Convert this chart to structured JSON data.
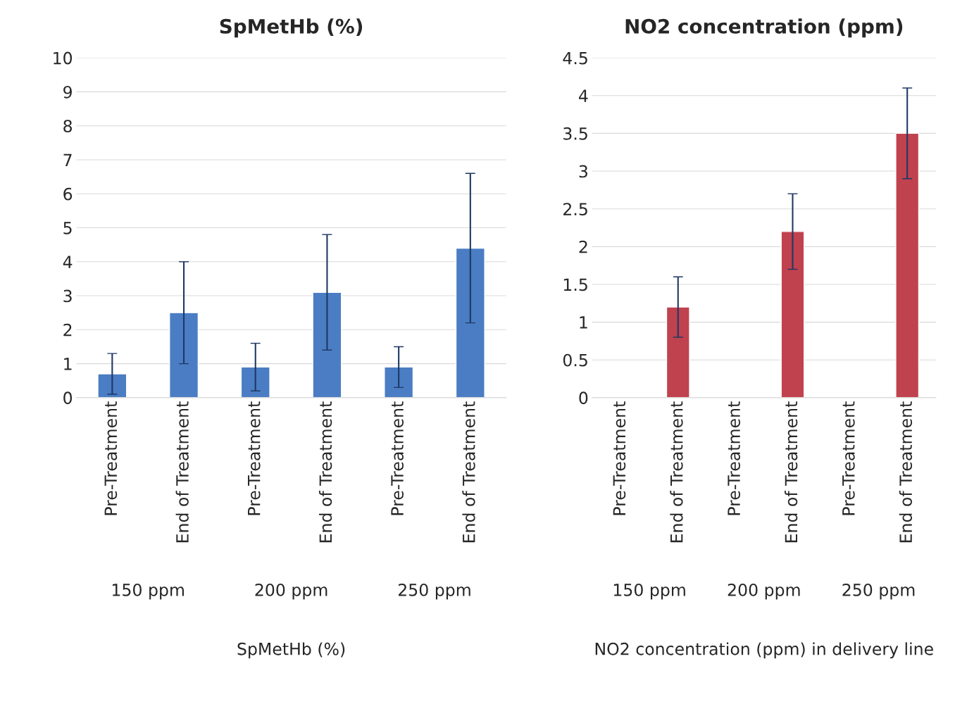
{
  "chart_data": [
    {
      "type": "bar",
      "title": "SpMetHb (%)",
      "xlabel": "SpMetHb (%)",
      "categories": [
        "Pre-Treatment",
        "End of Treatment",
        "Pre-Treatment",
        "End of Treatment",
        "Pre-Treatment",
        "End of Treatment"
      ],
      "annotations": [
        "150 ppm",
        "200 ppm",
        "250 ppm"
      ],
      "values": [
        0.7,
        2.5,
        0.9,
        3.1,
        0.9,
        4.4
      ],
      "errors": [
        0.6,
        1.5,
        0.7,
        1.7,
        0.6,
        2.2
      ],
      "color": "#4a7dc3",
      "ylim": [
        0,
        10
      ],
      "yticks": [
        0,
        1,
        2,
        3,
        4,
        5,
        6,
        7,
        8,
        9,
        10
      ],
      "grid": "y",
      "legend": false
    },
    {
      "type": "bar",
      "title": "NO2 concentration (ppm)",
      "xlabel": "NO2 concentration (ppm) in delivery line",
      "categories": [
        "Pre-Treatment",
        "End of Treatment",
        "Pre-Treatment",
        "End of Treatment",
        "Pre-Treatment",
        "End of Treatment"
      ],
      "annotations": [
        "150 ppm",
        "200 ppm",
        "250 ppm"
      ],
      "values": [
        null,
        1.2,
        null,
        2.2,
        null,
        3.5
      ],
      "errors": [
        null,
        0.4,
        null,
        0.5,
        null,
        0.6
      ],
      "color": "#c0424e",
      "ylim": [
        0,
        4.5
      ],
      "yticks": [
        0,
        0.5,
        1,
        1.5,
        2,
        2.5,
        3,
        3.5,
        4,
        4.5
      ],
      "grid": "y",
      "legend": false
    }
  ]
}
